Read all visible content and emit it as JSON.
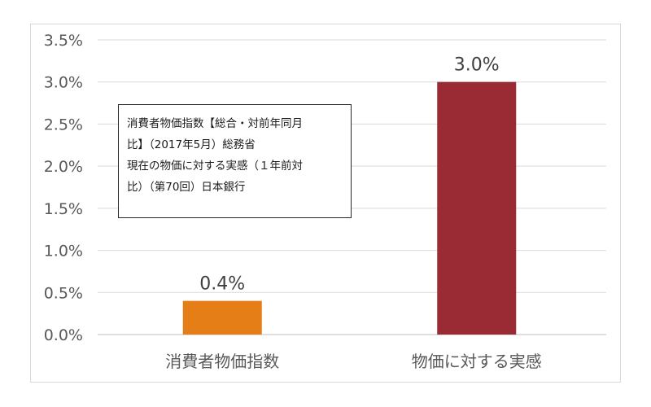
{
  "chart_data": {
    "type": "bar",
    "categories": [
      "消費者物価指数",
      "物価に対する実感"
    ],
    "values": [
      0.4,
      3.0
    ],
    "value_labels": [
      "0.4%",
      "3.0%"
    ],
    "colors": [
      "#e67e17",
      "#9a2a34"
    ],
    "ylim": [
      0,
      3.5
    ],
    "yticks": [
      0.0,
      0.5,
      1.0,
      1.5,
      2.0,
      2.5,
      3.0,
      3.5
    ],
    "ytick_labels": [
      "0.0%",
      "0.5%",
      "1.0%",
      "1.5%",
      "2.0%",
      "2.5%",
      "3.0%",
      "3.5%"
    ],
    "grid": true,
    "legend": "none"
  },
  "note": {
    "lines": [
      "消費者物価指数【総合・対前年同月",
      "比】（2017年5月）総務省",
      "現在の物価に対する実感（１年前対",
      "比）（第70回）日本銀行"
    ]
  }
}
